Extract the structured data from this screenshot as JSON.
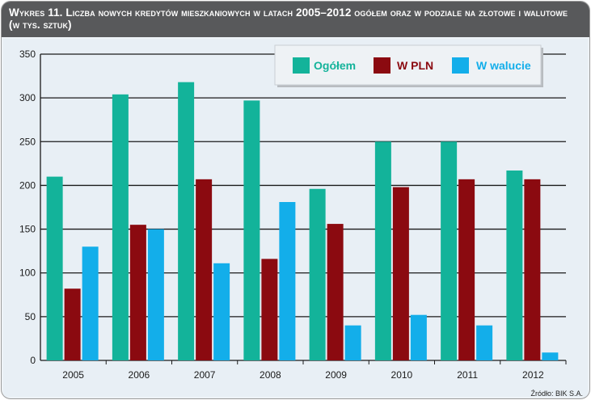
{
  "title": "Wykres 11. Liczba nowych kredytów mieszkaniowych w latach 2005–2012 ogółem oraz w podziale na złotowe i walutowe (w tys. sztuk)",
  "source": "Źródło: BIK S.A.",
  "colors": {
    "ogolem": "#13b39a",
    "pln": "#8b0a10",
    "walut": "#13aeea"
  },
  "chart_data": {
    "type": "bar",
    "categories": [
      "2005",
      "2006",
      "2007",
      "2008",
      "2009",
      "2010",
      "2011",
      "2012"
    ],
    "series": [
      {
        "name": "Ogółem",
        "key": "ogolem",
        "values": [
          210,
          304,
          318,
          297,
          196,
          250,
          250,
          217
        ]
      },
      {
        "name": "W PLN",
        "key": "pln",
        "values": [
          82,
          155,
          207,
          116,
          156,
          198,
          207,
          207
        ]
      },
      {
        "name": "W walucie",
        "key": "walut",
        "values": [
          130,
          150,
          111,
          181,
          40,
          52,
          40,
          9
        ]
      }
    ],
    "ylim": [
      0,
      350
    ],
    "yticks": [
      0,
      50,
      100,
      150,
      200,
      250,
      300,
      350
    ],
    "legend": "top-right",
    "grid": true
  }
}
